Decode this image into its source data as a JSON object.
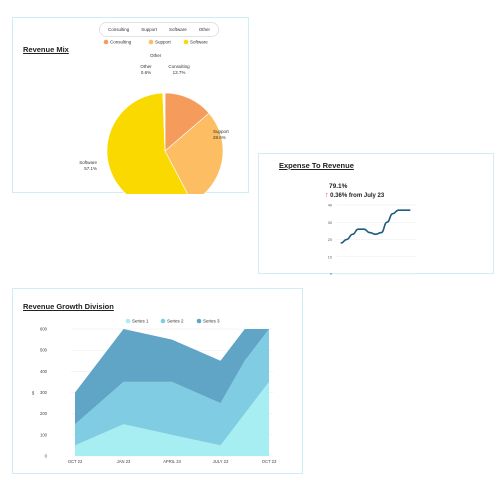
{
  "colors": {
    "consulting": "#f59b5b",
    "support": "#fdbe63",
    "software": "#fad900",
    "other": "#ffffff",
    "expense_line": "#1d5c80",
    "series1": "#a6eef2",
    "series2": "#80cce2",
    "series3": "#60a4c6",
    "kpi_arrow": "#e53950"
  },
  "revenue_mix": {
    "title": "Revenue Mix",
    "tabs": [
      "Consulting",
      "Support",
      "Software",
      "Other"
    ]
  },
  "expense": {
    "title": "Expense To Revenue",
    "kpi_value": "79.1%",
    "kpi_arrow": "↑",
    "kpi_change": "0.36% from July 23"
  },
  "growth": {
    "title": "Revenue Growth Division"
  },
  "chart_data": [
    {
      "type": "pie",
      "title": "Revenue Mix",
      "legend": "top",
      "categories": [
        "Consulting",
        "Support",
        "Software",
        "Other"
      ],
      "values": [
        13.7,
        28.6,
        57.1,
        0.6
      ],
      "labels": [
        {
          "name": "Consulting",
          "value": "13.7%"
        },
        {
          "name": "Support",
          "value": "28.6%"
        },
        {
          "name": "Software",
          "value": "57.1%"
        },
        {
          "name": "Other",
          "value": "0.6%"
        }
      ]
    },
    {
      "type": "line",
      "title": "Expense To Revenue",
      "y_ticks": [
        "40",
        "30",
        "20",
        "10",
        "0"
      ],
      "ylim": [
        0,
        40
      ],
      "grid": true,
      "values": [
        18,
        20,
        23,
        26,
        26,
        24,
        23,
        24,
        30,
        35,
        37,
        37,
        37
      ]
    },
    {
      "type": "area",
      "title": "Revenue Growth Division",
      "stacked": true,
      "legend": "top",
      "ylabel": "$",
      "x_ticks": [
        "OCT 22",
        "JAN 23",
        "APRIL 23",
        "JULY 23",
        "OCT 23"
      ],
      "y_ticks": [
        "600",
        "500",
        "400",
        "300",
        "200",
        "100",
        "0"
      ],
      "ylim": [
        0,
        600
      ],
      "x": [
        0,
        1,
        2,
        3,
        3.5,
        4
      ],
      "series": [
        {
          "name": "Series 1",
          "values": [
            50,
            150,
            100,
            50,
            200,
            350
          ]
        },
        {
          "name": "Series 2",
          "values": [
            100,
            200,
            250,
            200,
            250,
            250
          ]
        },
        {
          "name": "Series 3",
          "values": [
            150,
            250,
            200,
            200,
            150,
            0
          ]
        }
      ]
    }
  ]
}
